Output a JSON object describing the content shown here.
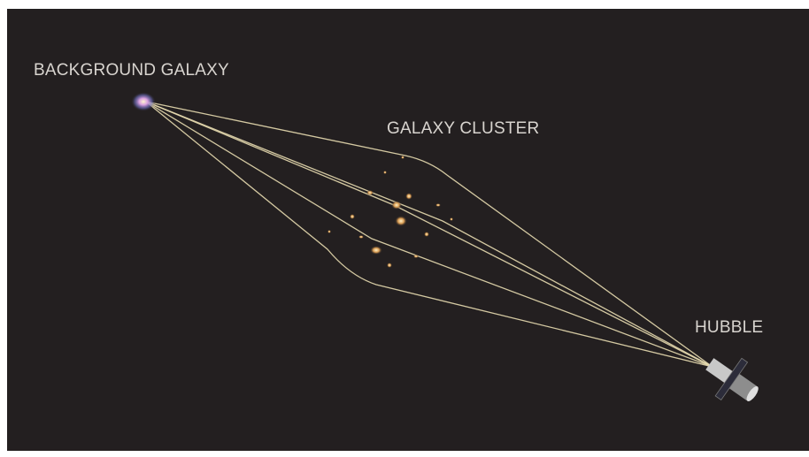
{
  "labels": {
    "source": "BACKGROUND GALAXY",
    "lens": "GALAXY CLUSTER",
    "observer": "HUBBLE"
  }
}
